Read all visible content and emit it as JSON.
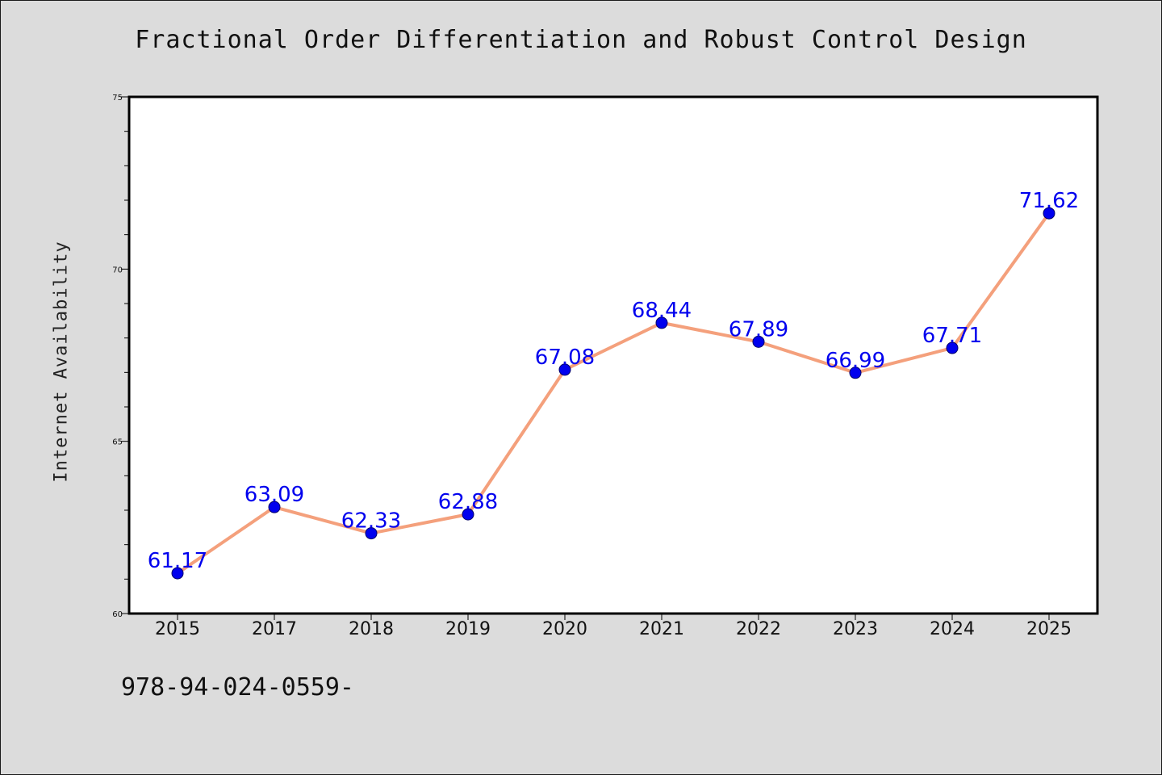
{
  "chart_data": {
    "type": "line",
    "title": "Fractional Order Differentiation and Robust Control Design",
    "xlabel": "",
    "ylabel": "Internet Availability",
    "categories": [
      "2015",
      "2017",
      "2018",
      "2019",
      "2020",
      "2021",
      "2022",
      "2023",
      "2024",
      "2025"
    ],
    "series": [
      {
        "values": [
          61.17,
          63.09,
          62.33,
          62.88,
          67.08,
          68.44,
          67.89,
          66.99,
          67.71,
          71.62
        ],
        "labels": [
          "61.17",
          "63.09",
          "62.33",
          "62.88",
          "67.08",
          "68.44",
          "67.89",
          "66.99",
          "67.71",
          "71.62"
        ],
        "line_color": "#f4a07c",
        "marker_color": "#0000ee",
        "label_color": "#0000ee"
      }
    ],
    "ylim": [
      60,
      75
    ],
    "yticks": [
      "60",
      "65",
      "70",
      "75"
    ],
    "grid": false,
    "legend": "none"
  },
  "footer": {
    "text": "978-94-024-0559-"
  }
}
